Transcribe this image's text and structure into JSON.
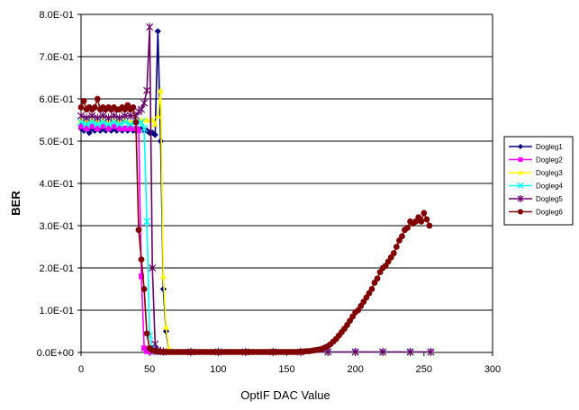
{
  "chart_data": {
    "type": "line",
    "xlabel": "OptIF DAC Value",
    "ylabel": "BER",
    "xlim": [
      0,
      300
    ],
    "ylim": [
      0,
      0.8
    ],
    "xticks": [
      0,
      50,
      100,
      150,
      200,
      250,
      300
    ],
    "xtick_labels": [
      "0",
      "50",
      "100",
      "150",
      "200",
      "250",
      "300"
    ],
    "yticks": [
      0,
      0.1,
      0.2,
      0.3,
      0.4,
      0.5,
      0.6,
      0.7,
      0.8
    ],
    "ytick_labels": [
      "0.0E+00",
      "1.0E-01",
      "2.0E-01",
      "3.0E-01",
      "4.0E-01",
      "5.0E-01",
      "6.0E-01",
      "7.0E-01",
      "8.0E-01"
    ],
    "grid": "horizontal",
    "legend_position": "right",
    "series": [
      {
        "name": "Dogleg1",
        "color": "#000080",
        "marker": "diamond",
        "x": [
          0,
          2,
          4,
          6,
          8,
          10,
          12,
          14,
          16,
          18,
          20,
          22,
          24,
          26,
          28,
          30,
          32,
          34,
          36,
          38,
          40,
          42,
          44,
          46,
          48,
          50,
          52,
          54,
          56,
          58,
          60,
          62,
          64,
          66,
          70,
          80,
          100,
          120,
          140,
          160,
          180,
          200,
          220,
          240,
          255
        ],
        "y": [
          0.53,
          0.525,
          0.53,
          0.52,
          0.53,
          0.525,
          0.53,
          0.525,
          0.53,
          0.525,
          0.53,
          0.525,
          0.53,
          0.525,
          0.53,
          0.525,
          0.53,
          0.525,
          0.53,
          0.525,
          0.525,
          0.525,
          0.53,
          0.525,
          0.525,
          0.52,
          0.52,
          0.515,
          0.76,
          0.5,
          0.15,
          0.05,
          0.005,
          0.002,
          0.001,
          0.001,
          0.001,
          0.001,
          0.001,
          0.001,
          0.001,
          0.001,
          0.001,
          0.001,
          0.001
        ]
      },
      {
        "name": "Dogleg2",
        "color": "#ff00ff",
        "marker": "square",
        "x": [
          0,
          4,
          8,
          12,
          16,
          20,
          24,
          28,
          32,
          36,
          40,
          42,
          44,
          46,
          48,
          50,
          52,
          56,
          60,
          80,
          100,
          120,
          140,
          160,
          180,
          200,
          220,
          240,
          255
        ],
        "y": [
          0.535,
          0.53,
          0.535,
          0.53,
          0.535,
          0.53,
          0.535,
          0.53,
          0.53,
          0.53,
          0.53,
          0.525,
          0.18,
          0.01,
          0.003,
          0.002,
          0.001,
          0.001,
          0.001,
          0.001,
          0.001,
          0.001,
          0.001,
          0.001,
          0.001,
          0.001,
          0.001,
          0.001,
          0.001
        ]
      },
      {
        "name": "Dogleg3",
        "color": "#ffff00",
        "marker": "triangle",
        "x": [
          0,
          4,
          8,
          12,
          16,
          20,
          24,
          28,
          32,
          36,
          40,
          44,
          48,
          52,
          54,
          56,
          58,
          60,
          62,
          64,
          66,
          70,
          80,
          100,
          120,
          140,
          160,
          180,
          200,
          220,
          240,
          255
        ],
        "y": [
          0.55,
          0.545,
          0.55,
          0.545,
          0.55,
          0.545,
          0.55,
          0.545,
          0.55,
          0.545,
          0.55,
          0.55,
          0.55,
          0.55,
          0.54,
          0.56,
          0.62,
          0.18,
          0.06,
          0.01,
          0.002,
          0.001,
          0.001,
          0.001,
          0.001,
          0.001,
          0.001,
          0.001,
          0.001,
          0.001,
          0.001,
          0.001
        ]
      },
      {
        "name": "Dogleg4",
        "color": "#00ffff",
        "marker": "x",
        "x": [
          0,
          4,
          8,
          12,
          16,
          20,
          24,
          28,
          32,
          36,
          40,
          44,
          46,
          48,
          50,
          52,
          54,
          56,
          60,
          80,
          100,
          120,
          140,
          160,
          180,
          200,
          220,
          240,
          255
        ],
        "y": [
          0.545,
          0.54,
          0.545,
          0.54,
          0.545,
          0.54,
          0.545,
          0.54,
          0.545,
          0.54,
          0.545,
          0.545,
          0.53,
          0.31,
          0.04,
          0.01,
          0.003,
          0.002,
          0.001,
          0.001,
          0.001,
          0.001,
          0.001,
          0.001,
          0.001,
          0.001,
          0.001,
          0.001,
          0.001
        ]
      },
      {
        "name": "Dogleg5",
        "color": "#660066",
        "marker": "star",
        "x": [
          0,
          4,
          8,
          12,
          16,
          20,
          24,
          28,
          32,
          36,
          40,
          42,
          44,
          46,
          48,
          50,
          52,
          54,
          56,
          60,
          80,
          100,
          120,
          140,
          160,
          180,
          200,
          220,
          240,
          255
        ],
        "y": [
          0.56,
          0.555,
          0.56,
          0.555,
          0.56,
          0.555,
          0.56,
          0.555,
          0.56,
          0.56,
          0.56,
          0.57,
          0.575,
          0.59,
          0.62,
          0.77,
          0.2,
          0.02,
          0.005,
          0.002,
          0.001,
          0.001,
          0.001,
          0.001,
          0.001,
          0.001,
          0.001,
          0.001,
          0.001,
          0.001
        ]
      },
      {
        "name": "Dogleg6",
        "color": "#800000",
        "marker": "circle",
        "x": [
          0,
          2,
          4,
          6,
          8,
          10,
          12,
          14,
          16,
          18,
          20,
          22,
          24,
          26,
          28,
          30,
          32,
          34,
          36,
          38,
          40,
          42,
          44,
          46,
          48,
          50,
          52,
          54,
          56,
          58,
          60,
          62,
          64,
          66,
          68,
          70,
          72,
          74,
          76,
          78,
          80,
          82,
          84,
          86,
          88,
          90,
          92,
          94,
          96,
          98,
          100,
          102,
          104,
          106,
          108,
          110,
          112,
          114,
          116,
          118,
          120,
          122,
          124,
          126,
          128,
          130,
          132,
          134,
          136,
          138,
          140,
          142,
          144,
          146,
          148,
          150,
          152,
          154,
          156,
          158,
          160,
          162,
          164,
          166,
          168,
          170,
          172,
          174,
          176,
          178,
          180,
          182,
          184,
          186,
          188,
          190,
          192,
          194,
          196,
          198,
          200,
          202,
          204,
          206,
          208,
          210,
          212,
          214,
          216,
          218,
          220,
          222,
          224,
          226,
          228,
          230,
          232,
          234,
          236,
          238,
          240,
          242,
          244,
          246,
          248,
          250,
          252,
          254
        ],
        "y": [
          0.58,
          0.595,
          0.575,
          0.58,
          0.575,
          0.58,
          0.6,
          0.575,
          0.58,
          0.575,
          0.58,
          0.575,
          0.58,
          0.575,
          0.575,
          0.58,
          0.575,
          0.585,
          0.575,
          0.58,
          0.545,
          0.29,
          0.22,
          0.15,
          0.045,
          0.01,
          0.005,
          0.003,
          0.002,
          0.002,
          0.001,
          0.001,
          0.001,
          0.001,
          0.001,
          0.001,
          0.001,
          0.001,
          0.001,
          0.001,
          0.001,
          0.001,
          0.001,
          0.001,
          0.001,
          0.001,
          0.001,
          0.001,
          0.001,
          0.001,
          0.001,
          0.001,
          0.001,
          0.001,
          0.001,
          0.001,
          0.001,
          0.001,
          0.001,
          0.001,
          0.001,
          0.001,
          0.001,
          0.001,
          0.001,
          0.001,
          0.001,
          0.001,
          0.001,
          0.001,
          0.001,
          0.001,
          0.001,
          0.001,
          0.001,
          0.001,
          0.001,
          0.001,
          0.001,
          0.001,
          0.002,
          0.002,
          0.003,
          0.003,
          0.004,
          0.005,
          0.006,
          0.007,
          0.009,
          0.012,
          0.015,
          0.02,
          0.026,
          0.032,
          0.04,
          0.048,
          0.056,
          0.065,
          0.075,
          0.085,
          0.095,
          0.1,
          0.11,
          0.12,
          0.13,
          0.14,
          0.15,
          0.165,
          0.175,
          0.19,
          0.2,
          0.205,
          0.215,
          0.225,
          0.235,
          0.25,
          0.265,
          0.275,
          0.29,
          0.295,
          0.31,
          0.305,
          0.31,
          0.32,
          0.31,
          0.33,
          0.315,
          0.3
        ]
      }
    ]
  }
}
